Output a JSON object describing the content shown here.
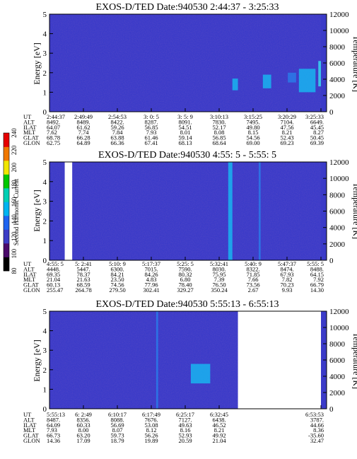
{
  "chart_data": [
    {
      "type": "heatmap",
      "title": "EXOS-D/TED   Date:940530  2:44:37 - 3:25:33",
      "ylabel": "Energy [eV]",
      "y2label": "Temperature [K]",
      "ylim": [
        0,
        5
      ],
      "yticks": [
        "0",
        "1",
        "2",
        "3",
        "4",
        "5"
      ],
      "y2lim": [
        0,
        12000
      ],
      "y2ticks": [
        "0",
        "2000",
        "4000",
        "6000",
        "8000",
        "10000",
        "12000"
      ],
      "background_color": "#3b3bc8",
      "features": [
        {
          "t0": 0.66,
          "t1": 0.68,
          "e0": 1.1,
          "e1": 1.7,
          "level": 0.55
        },
        {
          "t0": 0.77,
          "t1": 0.8,
          "e0": 1.2,
          "e1": 1.9,
          "level": 0.5
        },
        {
          "t0": 0.86,
          "t1": 0.89,
          "e0": 1.5,
          "e1": 2.0,
          "level": 0.45
        },
        {
          "t0": 0.9,
          "t1": 0.96,
          "e0": 1.0,
          "e1": 2.2,
          "level": 0.7
        },
        {
          "t0": 0.97,
          "t1": 1.0,
          "e0": 1.3,
          "e1": 2.6,
          "level": 0.85
        }
      ],
      "gaps": [],
      "table": {
        "labels": [
          "UT",
          "ALT",
          "ILAT",
          "MLT",
          "GLAT",
          "GLON"
        ],
        "columns": [
          [
            "2:44:37",
            "8492.",
            "64.07",
            "7.62",
            "68.78",
            "62.75"
          ],
          [
            "2:49:49",
            "8489.",
            "61.62",
            "7.74",
            "66.28",
            "64.89"
          ],
          [
            "2:54:53",
            "8422.",
            "59.26",
            "7.84",
            "63.88",
            "66.36"
          ],
          [
            "3: 0: 5",
            "8287.",
            "56.85",
            "7.93",
            "61.46",
            "67.41"
          ],
          [
            "3: 5: 9",
            "8091.",
            "54.51",
            "8.01",
            "59.14",
            "68.13"
          ],
          [
            "3:10:13",
            "7830.",
            "52.17",
            "8.08",
            "56.85",
            "68.64"
          ],
          [
            "3:15:25",
            "7495.",
            "49.80",
            "8.15",
            "54.56",
            "69.00"
          ],
          [
            "3:20:29",
            "7104.",
            "47.56",
            "8.21",
            "52.43",
            "69.23"
          ],
          [
            "3:25:33",
            "6649.",
            "45.45",
            "8.27",
            "50.45",
            "69.39"
          ]
        ]
      }
    },
    {
      "type": "heatmap",
      "title": "EXOS-D/TED   Date:940530  4:55: 5 - 5:55: 5",
      "ylabel": "Energy [eV]",
      "y2label": "Temperature [K]",
      "ylim": [
        0,
        5
      ],
      "yticks": [
        "0",
        "1",
        "2",
        "3",
        "4",
        "5"
      ],
      "y2lim": [
        0,
        12000
      ],
      "y2ticks": [
        "0",
        "2000",
        "4000",
        "6000",
        "8000",
        "10000",
        "12000"
      ],
      "background_color": "#3b3bc8",
      "features": [
        {
          "t0": 0.645,
          "t1": 0.66,
          "e0": 0.0,
          "e1": 5.0,
          "level": 0.55
        },
        {
          "t0": 0.755,
          "t1": 0.762,
          "e0": 0.0,
          "e1": 5.0,
          "level": 0.3
        }
      ],
      "gaps": [
        {
          "t0": 0.055,
          "t1": 0.082
        }
      ],
      "table": {
        "labels": [
          "UT",
          "ALT",
          "ILAT",
          "MLT",
          "GLAT",
          "GLON"
        ],
        "columns": [
          [
            "4:55: 5",
            "4448.",
            "69.35",
            "21.04",
            "60.13",
            "255.47"
          ],
          [
            "5: 2:41",
            "5447.",
            "78.37",
            "21.63",
            "68.59",
            "264.78"
          ],
          [
            "5:10: 9",
            "6300.",
            "84.21",
            "23.50",
            "74.56",
            "279.50"
          ],
          [
            "5:17:37",
            "7015.",
            "84.26",
            "4.83",
            "77.96",
            "302.41"
          ],
          [
            "5:25: 5",
            "7590.",
            "80.32",
            "6.80",
            "78.40",
            "329.27"
          ],
          [
            "5:32:41",
            "8030.",
            "75.95",
            "7.39",
            "76.50",
            "350.24"
          ],
          [
            "5:40: 9",
            "8322.",
            "71.85",
            "7.66",
            "73.56",
            "2.67"
          ],
          [
            "5:47:37",
            "8474.",
            "67.93",
            "7.82",
            "70.23",
            "9.93"
          ],
          [
            "5:55: 5",
            "8488.",
            "64.15",
            "7.92",
            "66.79",
            "14.30"
          ]
        ]
      }
    },
    {
      "type": "heatmap",
      "title": "EXOS-D/TED   Date:940530  5:55:13 - 6:55:13",
      "ylabel": "Energy [eV]",
      "y2label": "Temperature [K]",
      "ylim": [
        0,
        5
      ],
      "yticks": [
        "0",
        "1",
        "2",
        "3",
        "4",
        "5"
      ],
      "y2lim": [
        0,
        12000
      ],
      "y2ticks": [
        "0",
        "2000",
        "4000",
        "6000",
        "8000",
        "10000",
        "12000"
      ],
      "background_color": "#3b3bc8",
      "features": [
        {
          "t0": 0.385,
          "t1": 0.392,
          "e0": 0.0,
          "e1": 5.0,
          "level": 0.45
        },
        {
          "t0": 0.51,
          "t1": 0.58,
          "e0": 1.3,
          "e1": 2.3,
          "level": 0.75
        }
      ],
      "gaps": [
        {
          "t0": 0.68,
          "t1": 1.0
        }
      ],
      "table": {
        "labels": [
          "UT",
          "ALT",
          "ILAT",
          "MLT",
          "GLAT",
          "GLON"
        ],
        "columns": [
          [
            "5:55:13",
            "8487.",
            "64.09",
            "7.93",
            "66.73",
            "14.36"
          ],
          [
            "6: 2:49",
            "8356.",
            "60.33",
            "8.00",
            "63.20",
            "17.09"
          ],
          [
            "6:10:17",
            "8088.",
            "56.69",
            "8.07",
            "59.73",
            "18.79"
          ],
          [
            "6:17:49",
            "7676.",
            "53.08",
            "8.12",
            "56.26",
            "19.89"
          ],
          [
            "6:25:17",
            "7127.",
            "49.63",
            "8.16",
            "52.93",
            "20.59"
          ],
          [
            "6:32:45",
            "6438.",
            "46.52",
            "8.21",
            "49.92",
            "21.04"
          ],
          null,
          null,
          [
            "6:53:53",
            "3787.",
            "44.66",
            "8.36",
            "-35.60",
            "32.47"
          ]
        ]
      }
    }
  ],
  "colorbar": {
    "label": "Second Harmonic Current",
    "ticks": [
      "80",
      "100",
      "120",
      "140",
      "160",
      "180",
      "200",
      "220",
      "240"
    ],
    "colors": [
      "#000000",
      "#4a0a6a",
      "#3c3cc6",
      "#1e64f0",
      "#00b4f0",
      "#00d0b4",
      "#00c800",
      "#f0e600",
      "#f07800",
      "#e60000"
    ]
  }
}
